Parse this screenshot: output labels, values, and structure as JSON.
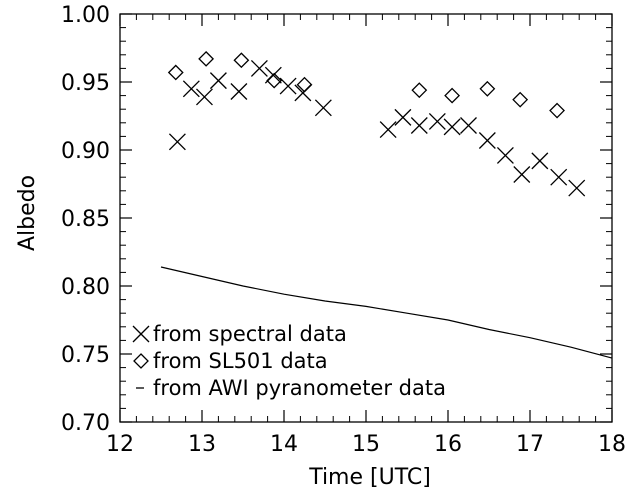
{
  "chart_data": {
    "type": "scatter",
    "xlabel": "Time [UTC]",
    "ylabel": "Albedo",
    "xlim": [
      12,
      18
    ],
    "ylim": [
      0.7,
      1.0
    ],
    "x_ticks": [
      "12",
      "13",
      "14",
      "15",
      "16",
      "17",
      "18"
    ],
    "y_ticks": [
      "0.70",
      "0.75",
      "0.80",
      "0.85",
      "0.90",
      "0.95",
      "1.00"
    ],
    "legend_position": "bottom-left",
    "series": [
      {
        "name": "from spectral data",
        "marker": "x",
        "points": [
          [
            12.7,
            0.906
          ],
          [
            12.87,
            0.945
          ],
          [
            13.03,
            0.939
          ],
          [
            13.2,
            0.951
          ],
          [
            13.45,
            0.943
          ],
          [
            13.7,
            0.96
          ],
          [
            13.87,
            0.955
          ],
          [
            14.05,
            0.947
          ],
          [
            14.23,
            0.942
          ],
          [
            14.48,
            0.931
          ],
          [
            15.27,
            0.915
          ],
          [
            15.45,
            0.924
          ],
          [
            15.65,
            0.918
          ],
          [
            15.87,
            0.921
          ],
          [
            16.05,
            0.917
          ],
          [
            16.25,
            0.918
          ],
          [
            16.48,
            0.907
          ],
          [
            16.7,
            0.896
          ],
          [
            16.9,
            0.882
          ],
          [
            17.12,
            0.892
          ],
          [
            17.35,
            0.88
          ],
          [
            17.57,
            0.872
          ]
        ]
      },
      {
        "name": "from SL501 data",
        "marker": "diamond",
        "points": [
          [
            12.68,
            0.957
          ],
          [
            13.05,
            0.967
          ],
          [
            13.48,
            0.966
          ],
          [
            13.88,
            0.951
          ],
          [
            14.25,
            0.948
          ],
          [
            15.65,
            0.944
          ],
          [
            16.05,
            0.94
          ],
          [
            16.48,
            0.945
          ],
          [
            16.88,
            0.937
          ],
          [
            17.33,
            0.929
          ]
        ]
      },
      {
        "name": "from AWI pyranometer data",
        "marker": "line",
        "points": [
          [
            12.5,
            0.814
          ],
          [
            13.0,
            0.807
          ],
          [
            13.5,
            0.8
          ],
          [
            14.0,
            0.794
          ],
          [
            14.5,
            0.789
          ],
          [
            15.0,
            0.785
          ],
          [
            15.5,
            0.78
          ],
          [
            16.0,
            0.775
          ],
          [
            16.5,
            0.768
          ],
          [
            17.0,
            0.762
          ],
          [
            17.5,
            0.755
          ],
          [
            18.0,
            0.747
          ]
        ]
      }
    ]
  }
}
